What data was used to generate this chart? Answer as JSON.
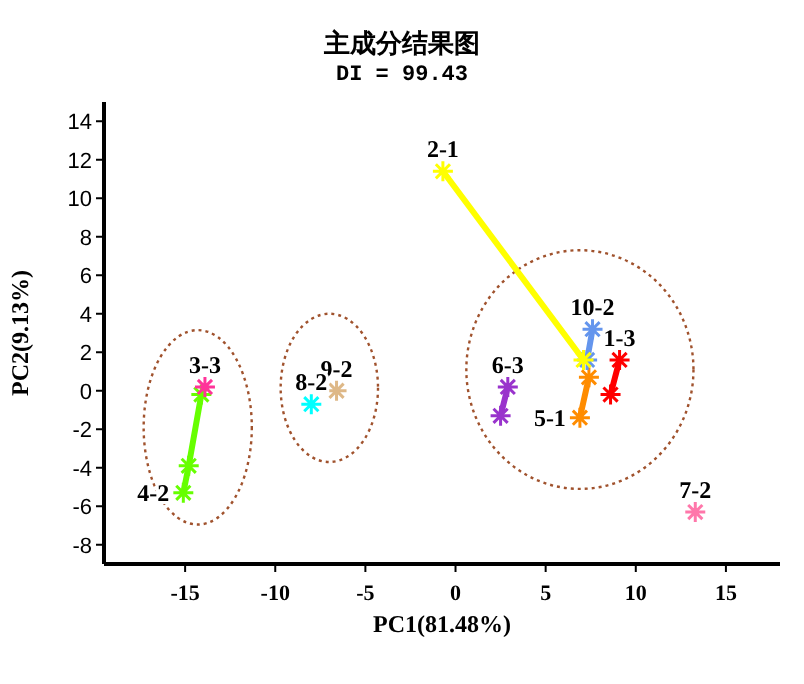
{
  "chart_data": {
    "type": "line",
    "title": "主成分结果图",
    "subtitle": "DI = 99.43",
    "xlabel": "PC1(81.48%)",
    "ylabel": "PC2(9.13%)",
    "xlim": [
      -19.5,
      18
    ],
    "ylim": [
      -9,
      15
    ],
    "xticks": [
      -15,
      -10,
      -5,
      0,
      5,
      10,
      15
    ],
    "yticks": [
      -8,
      -6,
      -4,
      -2,
      0,
      2,
      4,
      6,
      8,
      10,
      12,
      14
    ],
    "marker": "cross",
    "line_style": "solid",
    "grid": false,
    "series": [
      {
        "name": "2-1",
        "color": "#ffff00",
        "x": [
          -0.7,
          7.1
        ],
        "values": [
          11.4,
          1.6
        ]
      },
      {
        "name": "3-3",
        "color": "#ff3399",
        "x": [
          -13.9
        ],
        "values": [
          0.2
        ]
      },
      {
        "name": "4-2",
        "color": "#66ff00",
        "x": [
          -15.1,
          -14.8,
          -14.1
        ],
        "values": [
          -5.3,
          -3.9,
          -0.2
        ]
      },
      {
        "name": "8-2",
        "color": "#00ffff",
        "x": [
          -8.0
        ],
        "values": [
          -0.7
        ]
      },
      {
        "name": "9-2",
        "color": "#deb887",
        "x": [
          -6.6
        ],
        "values": [
          0
        ]
      },
      {
        "name": "10-2",
        "color": "#6495ed",
        "x": [
          7.6,
          7.3
        ],
        "values": [
          3.2,
          1.6
        ]
      },
      {
        "name": "1-3",
        "color": "#ff0000",
        "x": [
          9.1,
          8.6
        ],
        "values": [
          1.6,
          -0.2
        ]
      },
      {
        "name": "5-1",
        "color": "#ff8c00",
        "x": [
          6.9,
          7.4
        ],
        "values": [
          -1.4,
          0.7
        ]
      },
      {
        "name": "6-3",
        "color": "#9933cc",
        "x": [
          2.9,
          2.5
        ],
        "values": [
          0.2,
          -1.3
        ]
      },
      {
        "name": "7-2",
        "color": "#ff77aa",
        "x": [
          13.3
        ],
        "values": [
          -6.3
        ]
      }
    ]
  }
}
